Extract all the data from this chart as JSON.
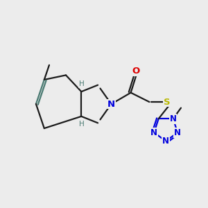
{
  "bg": "#ececec",
  "bc": "#1a1a1a",
  "teal": "#4a7a72",
  "blue": "#0000dd",
  "red": "#dd0000",
  "yellow": "#b8b800",
  "lw": 1.6,
  "fs": 8.0,
  "xlim": [
    0.0,
    10.0
  ],
  "ylim": [
    1.5,
    8.5
  ]
}
